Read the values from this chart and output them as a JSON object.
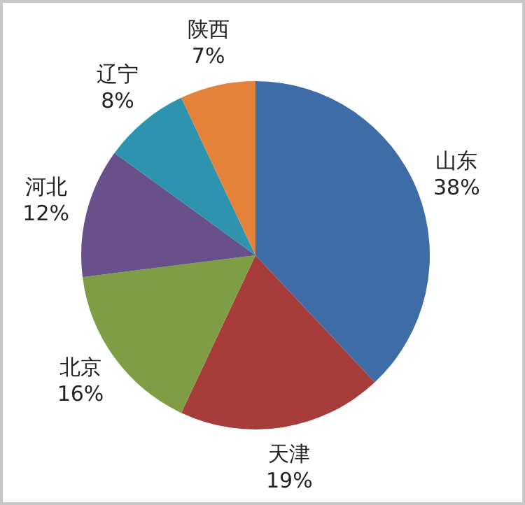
{
  "chart_data": {
    "type": "pie",
    "categories": [
      "山东",
      "天津",
      "北京",
      "河北",
      "辽宁",
      "陕西"
    ],
    "values": [
      38,
      19,
      16,
      12,
      8,
      7
    ],
    "colors": [
      "#3e6ca6",
      "#a63d3b",
      "#7f9d45",
      "#68518a",
      "#2e93ae",
      "#e4823a"
    ],
    "value_labels": [
      "38%",
      "19%",
      "16%",
      "12%",
      "8%",
      "7%"
    ],
    "legend": false
  }
}
